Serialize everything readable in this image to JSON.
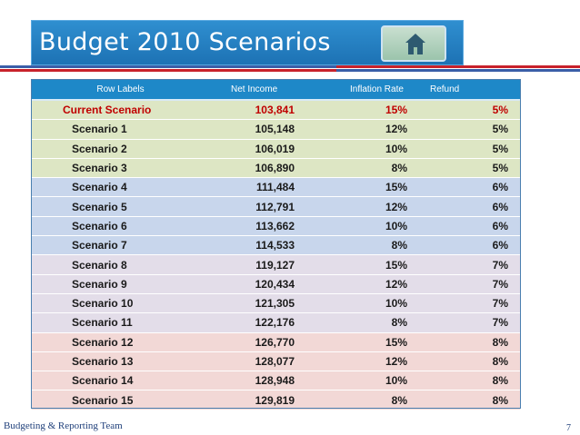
{
  "slide": {
    "title": "Budget 2010 Scenarios",
    "footer": "Budgeting & Reporting Team",
    "page_number": "7",
    "colors": {
      "title_bar": "#1d72b4",
      "header_row": "#1e88c8",
      "current_text": "#c00000",
      "group_green": "#dde6c4",
      "group_blue": "#c8d6ec",
      "group_lilac": "#e3dde9",
      "group_pink": "#f2d8d6"
    }
  },
  "nav": {
    "home_icon": "home-icon"
  },
  "table": {
    "headers": [
      "Row Labels",
      "Net Income",
      "Inflation Rate",
      "Refund"
    ],
    "rows": [
      [
        "Current Scenario",
        "103,841",
        "15%",
        "5%"
      ],
      [
        "Scenario 1",
        "105,148",
        "12%",
        "5%"
      ],
      [
        "Scenario 2",
        "106,019",
        "10%",
        "5%"
      ],
      [
        "Scenario 3",
        "106,890",
        "8%",
        "5%"
      ],
      [
        "Scenario 4",
        "111,484",
        "15%",
        "6%"
      ],
      [
        "Scenario 5",
        "112,791",
        "12%",
        "6%"
      ],
      [
        "Scenario 6",
        "113,662",
        "10%",
        "6%"
      ],
      [
        "Scenario 7",
        "114,533",
        "8%",
        "6%"
      ],
      [
        "Scenario 8",
        "119,127",
        "15%",
        "7%"
      ],
      [
        "Scenario 9",
        "120,434",
        "12%",
        "7%"
      ],
      [
        "Scenario 10",
        "121,305",
        "10%",
        "7%"
      ],
      [
        "Scenario 11",
        "122,176",
        "8%",
        "7%"
      ],
      [
        "Scenario 12",
        "126,770",
        "15%",
        "8%"
      ],
      [
        "Scenario 13",
        "128,077",
        "12%",
        "8%"
      ],
      [
        "Scenario 14",
        "128,948",
        "10%",
        "8%"
      ],
      [
        "Scenario 15",
        "129,819",
        "8%",
        "8%"
      ]
    ]
  }
}
